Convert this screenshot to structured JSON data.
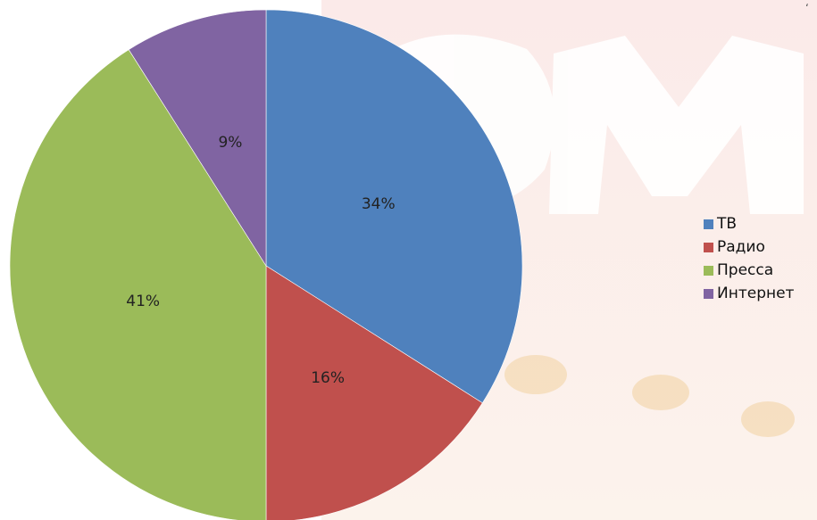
{
  "chart_data": {
    "type": "pie",
    "categories": [
      "ТВ",
      "Радио",
      "Пресса",
      "Интернет"
    ],
    "values": [
      34,
      16,
      41,
      9
    ],
    "labels": [
      "34%",
      "16%",
      "41%",
      "9%"
    ],
    "colors": [
      "#4f81bd",
      "#c0504d",
      "#9bbb59",
      "#8064a2"
    ],
    "start_angle_deg": 0,
    "direction": "clockwise",
    "legend_position": "right"
  },
  "legend": [
    {
      "label": "ТВ",
      "color": "#4f81bd"
    },
    {
      "label": "Радио",
      "color": "#c0504d"
    },
    {
      "label": "Пресса",
      "color": "#9bbb59"
    },
    {
      "label": "Интернет",
      "color": "#8064a2"
    }
  ],
  "decor": {
    "corner_mark": "ʻ"
  }
}
